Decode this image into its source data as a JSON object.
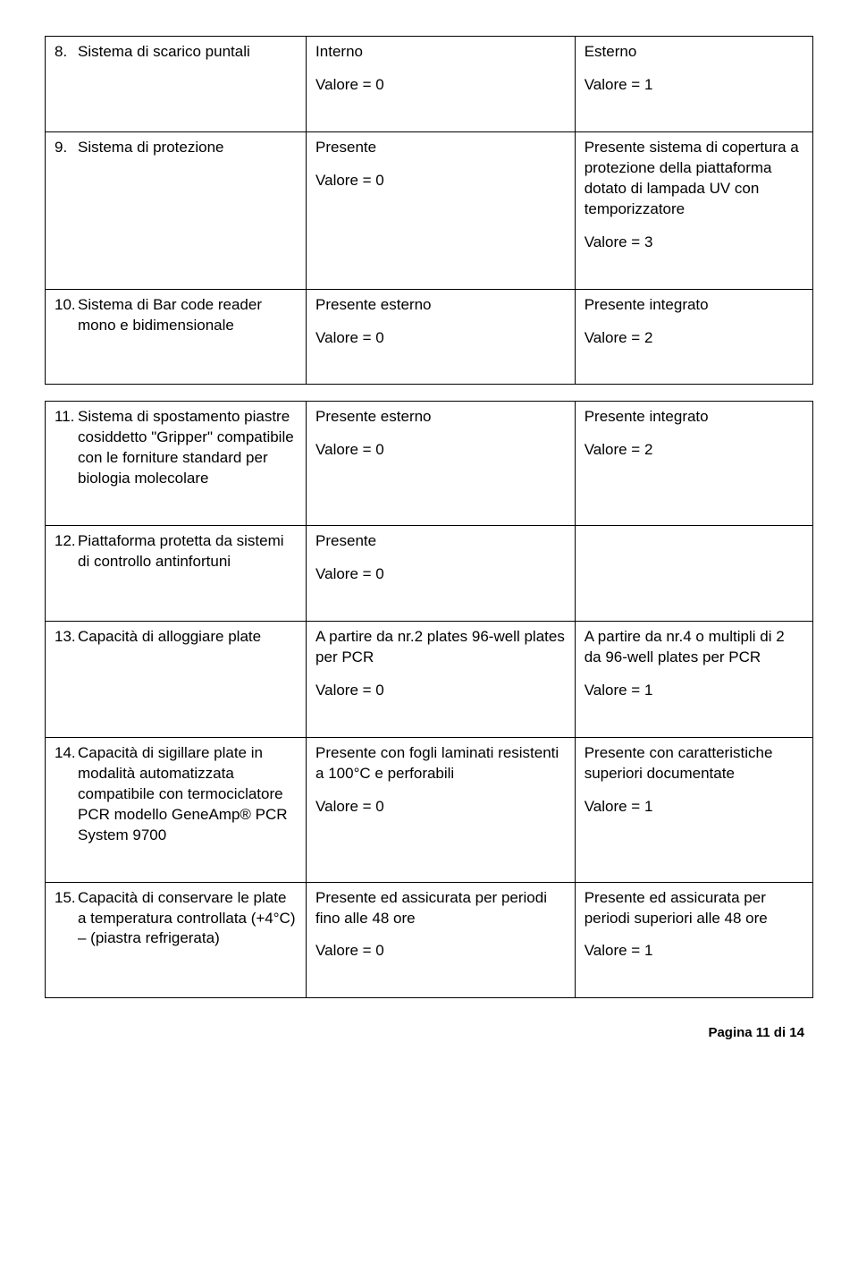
{
  "t1": {
    "r": [
      {
        "n": "8.",
        "label": "Sistema di scarico puntali",
        "c2a": "Interno",
        "c2b": "Valore = 0",
        "c3a": "Esterno",
        "c3b": "Valore = 1"
      },
      {
        "n": "9.",
        "label": "Sistema di protezione",
        "c2a": "Presente",
        "c2b": "Valore = 0",
        "c3a": "Presente sistema di copertura a protezione della piattaforma dotato di lampada UV con temporizzatore",
        "c3b": "Valore = 3"
      },
      {
        "n": "10.",
        "label": "Sistema di Bar code reader mono e bidimensionale",
        "c2a": "Presente esterno",
        "c2b": "Valore = 0",
        "c3a": "Presente integrato",
        "c3b": "Valore = 2"
      }
    ]
  },
  "t2": {
    "r": [
      {
        "n": "11.",
        "label": "Sistema di spostamento piastre cosiddetto \"Gripper\" compatibile con le forniture standard per biologia molecolare",
        "c2a": "Presente esterno",
        "c2b": "Valore = 0",
        "c3a": "Presente integrato",
        "c3b": "Valore = 2"
      },
      {
        "n": "12.",
        "label": "Piattaforma protetta da sistemi di controllo antinfortuni",
        "c2a": "Presente",
        "c2b": "Valore = 0",
        "c3a": "",
        "c3b": ""
      },
      {
        "n": "13.",
        "label": "Capacità di alloggiare plate",
        "c2a": "A partire da nr.2 plates 96-well plates per PCR",
        "c2b": "Valore = 0",
        "c3a": "A partire da nr.4 o multipli di 2 da 96-well plates per PCR",
        "c3b": "Valore = 1"
      },
      {
        "n": "14.",
        "label": "Capacità di sigillare plate in modalità automatizzata compatibile con termociclatore PCR modello GeneAmp® PCR System 9700",
        "c2a": "Presente con fogli laminati resistenti a 100°C e perforabili",
        "c2b": "Valore = 0",
        "c3a": "Presente con caratteristiche superiori documentate",
        "c3b": "Valore = 1"
      },
      {
        "n": "15.",
        "label": "Capacità di conservare le plate a temperatura controllata (+4°C) – (piastra refrigerata)",
        "c2a": "Presente ed assicurata per periodi fino alle 48 ore",
        "c2b": "Valore = 0",
        "c3a": "Presente ed assicurata per periodi superiori alle 48 ore",
        "c3b": "Valore = 1"
      }
    ]
  },
  "footer": "Pagina 11 di 14"
}
